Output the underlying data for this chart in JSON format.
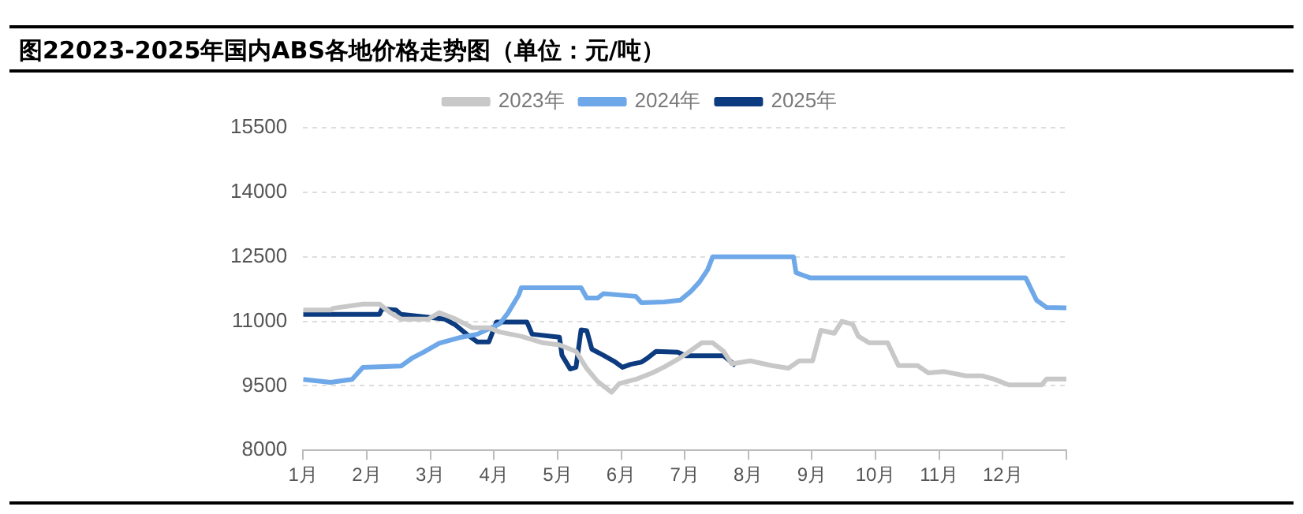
{
  "chart_data": {
    "type": "line",
    "title": "图22023-2025年国内ABS各地价格走势图（单位：元/吨）",
    "xlim": [
      1,
      13
    ],
    "xticks": [
      {
        "value": 1,
        "label": "1月"
      },
      {
        "value": 2,
        "label": "2月"
      },
      {
        "value": 3,
        "label": "3月"
      },
      {
        "value": 4,
        "label": "4月"
      },
      {
        "value": 5,
        "label": "5月"
      },
      {
        "value": 6,
        "label": "6月"
      },
      {
        "value": 7,
        "label": "7月"
      },
      {
        "value": 8,
        "label": "8月"
      },
      {
        "value": 9,
        "label": "9月"
      },
      {
        "value": 10,
        "label": "10月"
      },
      {
        "value": 11,
        "label": "11月"
      },
      {
        "value": 12,
        "label": "12月"
      },
      {
        "value": 13,
        "label": null
      }
    ],
    "ylim": [
      8000,
      15500
    ],
    "yticks": [
      8000,
      9500,
      11000,
      12500,
      14000,
      15500
    ],
    "grid": "y",
    "legend": "top",
    "marker": "none",
    "line_style": "solid",
    "series": [
      {
        "name": "2023年",
        "color": "#c8c8c8",
        "x": [
          1,
          1.43,
          1.47,
          1.94,
          2.2,
          2.37,
          2.54,
          2.97,
          3.14,
          3.4,
          3.66,
          3.92,
          4.09,
          4.43,
          4.77,
          5.03,
          5.29,
          5.46,
          5.63,
          5.85,
          5.97,
          6.23,
          6.49,
          6.68,
          6.93,
          7.27,
          7.44,
          7.61,
          7.74,
          8.03,
          8.37,
          8.63,
          8.8,
          9.01,
          9.14,
          9.35,
          9.47,
          9.64,
          9.73,
          9.9,
          10.19,
          10.36,
          10.66,
          10.83,
          11.08,
          11.42,
          11.68,
          11.85,
          12.1,
          12.61,
          12.69,
          13
        ],
        "values": [
          11260,
          11260,
          11300,
          11400,
          11400,
          11200,
          11050,
          11050,
          11200,
          11050,
          10850,
          10850,
          10750,
          10650,
          10500,
          10450,
          10300,
          9900,
          9600,
          9350,
          9550,
          9650,
          9800,
          9940,
          10150,
          10500,
          10500,
          10300,
          10010,
          10080,
          9970,
          9910,
          10080,
          10080,
          10790,
          10720,
          11000,
          10930,
          10650,
          10500,
          10500,
          9970,
          9970,
          9800,
          9830,
          9730,
          9730,
          9660,
          9520,
          9520,
          9660,
          9660
        ]
      },
      {
        "name": "2024年",
        "color": "#6fa8e8",
        "x": [
          1,
          1.43,
          1.77,
          1.94,
          2.54,
          2.71,
          2.89,
          3.14,
          3.49,
          3.74,
          4.09,
          4.22,
          4.39,
          4.43,
          5.37,
          5.46,
          5.63,
          5.72,
          6.23,
          6.32,
          6.68,
          6.93,
          7.1,
          7.23,
          7.36,
          7.44,
          8.71,
          8.75,
          8.97,
          12.36,
          12.53,
          12.69,
          13
        ],
        "values": [
          9650,
          9580,
          9650,
          9930,
          9960,
          10140,
          10280,
          10490,
          10630,
          10700,
          10940,
          11190,
          11610,
          11780,
          11780,
          11540,
          11540,
          11640,
          11580,
          11430,
          11450,
          11490,
          11700,
          11910,
          12200,
          12500,
          12500,
          12130,
          12010,
          12010,
          11490,
          11320,
          11310
        ]
      },
      {
        "name": "2025年",
        "color": "#0d3b7f",
        "x": [
          1,
          2.2,
          2.24,
          2.46,
          2.54,
          2.8,
          3.06,
          3.23,
          3.4,
          3.57,
          3.74,
          3.92,
          4.04,
          4.52,
          4.6,
          5.03,
          5.07,
          5.2,
          5.29,
          5.37,
          5.46,
          5.54,
          5.72,
          5.89,
          6.02,
          6.15,
          6.32,
          6.42,
          6.55,
          6.89,
          7.02,
          7.61,
          7.8
        ],
        "values": [
          11160,
          11160,
          11290,
          11260,
          11160,
          11120,
          11080,
          11050,
          10910,
          10700,
          10520,
          10520,
          10980,
          10980,
          10700,
          10630,
          10210,
          9890,
          9930,
          10800,
          10780,
          10350,
          10210,
          10070,
          9930,
          10000,
          10050,
          10150,
          10300,
          10280,
          10200,
          10200,
          9970
        ]
      }
    ]
  }
}
